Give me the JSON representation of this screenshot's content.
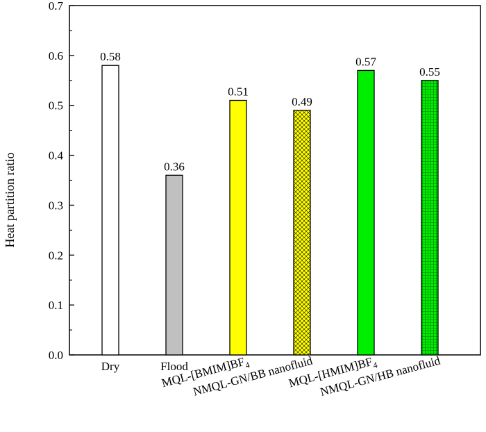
{
  "chart_data": {
    "type": "bar",
    "ylabel": "Heat partition ratio",
    "xlabel": "",
    "ylim": [
      0,
      0.7
    ],
    "yticks": [
      "0.0",
      "0.1",
      "0.2",
      "0.3",
      "0.4",
      "0.5",
      "0.6",
      "0.7"
    ],
    "categories": [
      {
        "text": "Dry"
      },
      {
        "text": "Flood"
      },
      {
        "text": "MQL-[BMIM]BF",
        "sub": "4"
      },
      {
        "text": "NMQL-GN/BB nanofluid"
      },
      {
        "text": "MQL-[HMIM]BF",
        "sub": "4"
      },
      {
        "text": "NMQL-GN/HB nanofluid"
      }
    ],
    "values": [
      0.58,
      0.36,
      0.51,
      0.49,
      0.57,
      0.55
    ],
    "value_labels": [
      "0.58",
      "0.36",
      "0.51",
      "0.49",
      "0.57",
      "0.55"
    ],
    "bar_styles": [
      {
        "fill": "#ffffff",
        "pattern": "none"
      },
      {
        "fill": "#c0c0c0",
        "pattern": "none"
      },
      {
        "fill": "#ffff00",
        "pattern": "none"
      },
      {
        "fill": "#ffff00",
        "pattern": "crosshatch"
      },
      {
        "fill": "#00ee00",
        "pattern": "none"
      },
      {
        "fill": "#00ee00",
        "pattern": "grid"
      }
    ],
    "grid": false,
    "legend": "none"
  }
}
